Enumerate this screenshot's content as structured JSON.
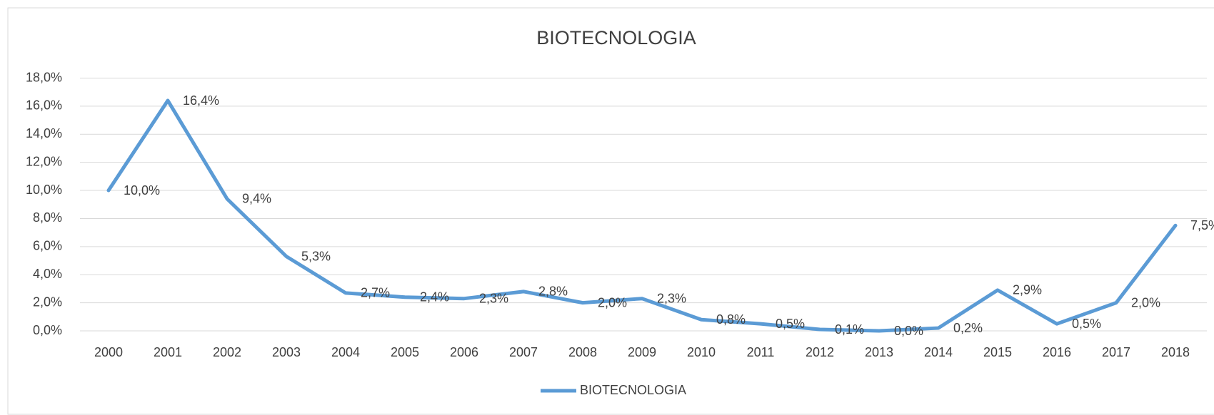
{
  "chart_data": {
    "type": "line",
    "title": "BIOTECNOLOGIA",
    "categories": [
      "2000",
      "2001",
      "2002",
      "2003",
      "2004",
      "2005",
      "2006",
      "2007",
      "2008",
      "2009",
      "2010",
      "2011",
      "2012",
      "2013",
      "2014",
      "2015",
      "2016",
      "2017",
      "2018"
    ],
    "series": [
      {
        "name": "BIOTECNOLOGIA",
        "color": "#5b9bd5",
        "values": [
          10.0,
          16.4,
          9.4,
          5.3,
          2.7,
          2.4,
          2.3,
          2.8,
          2.0,
          2.3,
          0.8,
          0.5,
          0.1,
          0.0,
          0.2,
          2.9,
          0.5,
          2.0,
          7.5
        ],
        "value_labels": [
          "10,0%",
          "16,4%",
          "9,4%",
          "5,3%",
          "2,7%",
          "2,4%",
          "2,3%",
          "2,8%",
          "2,0%",
          "2,3%",
          "0,8%",
          "0,5%",
          "0,1%",
          "0,0%",
          "0,2%",
          "2,9%",
          "0,5%",
          "2,0%",
          "7,5%"
        ]
      }
    ],
    "ylim": [
      0,
      18
    ],
    "yticks": [
      {
        "value": 0,
        "label": "0,0%"
      },
      {
        "value": 2,
        "label": "2,0%"
      },
      {
        "value": 4,
        "label": "4,0%"
      },
      {
        "value": 6,
        "label": "6,0%"
      },
      {
        "value": 8,
        "label": "8,0%"
      },
      {
        "value": 10,
        "label": "10,0%"
      },
      {
        "value": 12,
        "label": "12,0%"
      },
      {
        "value": 14,
        "label": "14,0%"
      },
      {
        "value": 16,
        "label": "16,0%"
      },
      {
        "value": 18,
        "label": "18,0%"
      }
    ],
    "grid": true,
    "legend": "bottom"
  }
}
